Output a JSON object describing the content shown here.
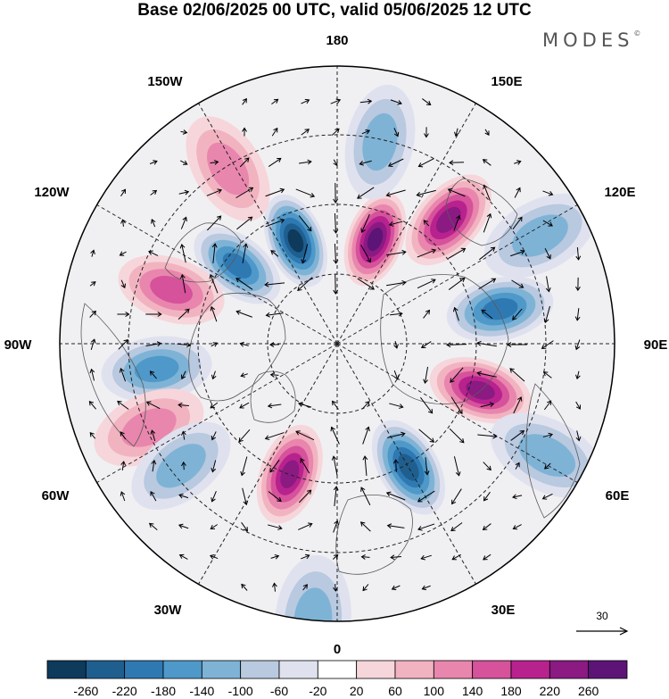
{
  "title": "Base 02/06/2025 00 UTC, valid 05/06/2025 12 UTC",
  "logo": {
    "text": "MODES",
    "mark": "©"
  },
  "map": {
    "projection": "north-polar-stereographic",
    "longitude_labels": {
      "top": "180",
      "top_right": "150E",
      "upper_right": "120E",
      "right": "90E",
      "lower_right": "60E",
      "bottom_right": "30E",
      "bottom": "0",
      "bottom_left": "30W",
      "lower_left": "60W",
      "left": "90W",
      "upper_left": "120W",
      "top_left": "150W"
    },
    "reference_vector_label": "30",
    "anomalies": [
      {
        "lon": 158,
        "lat": 62,
        "sign": "neg",
        "strength": 5
      },
      {
        "lon": -160,
        "lat": 62,
        "sign": "pos",
        "strength": 5
      },
      {
        "lon": 128,
        "lat": 58,
        "sign": "neg",
        "strength": 3
      },
      {
        "lon": -138,
        "lat": 48,
        "sign": "pos",
        "strength": 4
      },
      {
        "lon": 108,
        "lat": 46,
        "sign": "pos",
        "strength": 2
      },
      {
        "lon": -102,
        "lat": 48,
        "sign": "neg",
        "strength": 3
      },
      {
        "lon": 82,
        "lat": 44,
        "sign": "neg",
        "strength": 2
      },
      {
        "lon": -72,
        "lat": 52,
        "sign": "pos",
        "strength": 4
      },
      {
        "lon": 66,
        "lat": 38,
        "sign": "pos",
        "strength": 1
      },
      {
        "lon": -62,
        "lat": 30,
        "sign": "neg",
        "strength": 1
      },
      {
        "lon": 52,
        "lat": 40,
        "sign": "neg",
        "strength": 1
      },
      {
        "lon": -30,
        "lat": 54,
        "sign": "neg",
        "strength": 4
      },
      {
        "lon": 20,
        "lat": 55,
        "sign": "pos",
        "strength": 4
      },
      {
        "lon": 5,
        "lat": 20,
        "sign": "neg",
        "strength": 1
      },
      {
        "lon": -168,
        "lat": 38,
        "sign": "neg",
        "strength": 1
      },
      {
        "lon": 148,
        "lat": 38,
        "sign": "pos",
        "strength": 1
      },
      {
        "lon": -118,
        "lat": 32,
        "sign": "neg",
        "strength": 1
      }
    ]
  },
  "colorbar": {
    "colors": [
      "#0e3a5c",
      "#1f5f8f",
      "#2f79b3",
      "#4e99c9",
      "#7eb3d6",
      "#b8c9e0",
      "#dfe2ee",
      "#ffffff",
      "#f6d6db",
      "#f2b3c1",
      "#e986ad",
      "#d6529b",
      "#b8228e",
      "#8b1a82",
      "#5d1477"
    ],
    "ticks": [
      "-260",
      "-220",
      "-180",
      "-140",
      "-100",
      "-60",
      "-20",
      "20",
      "60",
      "100",
      "140",
      "180",
      "220",
      "260"
    ]
  }
}
